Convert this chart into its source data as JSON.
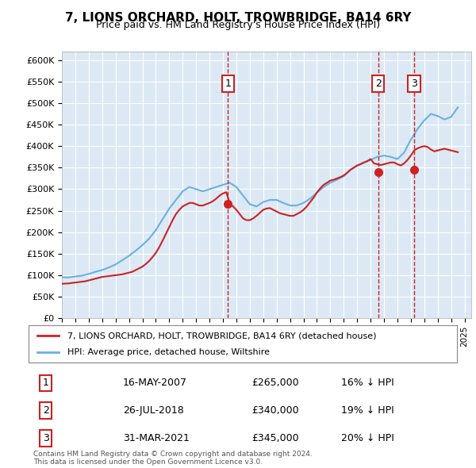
{
  "title": "7, LIONS ORCHARD, HOLT, TROWBRIDGE, BA14 6RY",
  "subtitle": "Price paid vs. HM Land Registry's House Price Index (HPI)",
  "background_color": "#dce9f5",
  "plot_bg_color": "#dce9f5",
  "ylim": [
    0,
    620000
  ],
  "yticks": [
    0,
    50000,
    100000,
    150000,
    200000,
    250000,
    300000,
    350000,
    400000,
    450000,
    500000,
    550000,
    600000
  ],
  "xlim_start": 1995.0,
  "xlim_end": 2025.5,
  "hpi_color": "#6ab0e0",
  "price_color": "#cc2222",
  "sale_marker_color": "#cc2222",
  "dashed_line_color": "#cc2222",
  "sale_points": [
    {
      "year": 2007.37,
      "price": 265000,
      "label": "1"
    },
    {
      "year": 2018.57,
      "price": 340000,
      "label": "2"
    },
    {
      "year": 2021.25,
      "price": 345000,
      "label": "3"
    }
  ],
  "legend_entries": [
    "7, LIONS ORCHARD, HOLT, TROWBRIDGE, BA14 6RY (detached house)",
    "HPI: Average price, detached house, Wiltshire"
  ],
  "table_data": [
    [
      "1",
      "16-MAY-2007",
      "£265,000",
      "16% ↓ HPI"
    ],
    [
      "2",
      "26-JUL-2018",
      "£340,000",
      "19% ↓ HPI"
    ],
    [
      "3",
      "31-MAR-2021",
      "£345,000",
      "20% ↓ HPI"
    ]
  ],
  "footer": "Contains HM Land Registry data © Crown copyright and database right 2024.\nThis data is licensed under the Open Government Licence v3.0.",
  "hpi_data_x": [
    1995.0,
    1995.5,
    1996.0,
    1996.5,
    1997.0,
    1997.5,
    1998.0,
    1998.5,
    1999.0,
    1999.5,
    2000.0,
    2000.5,
    2001.0,
    2001.5,
    2002.0,
    2002.5,
    2003.0,
    2003.5,
    2004.0,
    2004.5,
    2005.0,
    2005.5,
    2006.0,
    2006.5,
    2007.0,
    2007.5,
    2008.0,
    2008.5,
    2009.0,
    2009.5,
    2010.0,
    2010.5,
    2011.0,
    2011.5,
    2012.0,
    2012.5,
    2013.0,
    2013.5,
    2014.0,
    2014.5,
    2015.0,
    2015.5,
    2016.0,
    2016.5,
    2017.0,
    2017.5,
    2018.0,
    2018.5,
    2019.0,
    2019.5,
    2020.0,
    2020.5,
    2021.0,
    2021.5,
    2022.0,
    2022.5,
    2023.0,
    2023.5,
    2024.0,
    2024.5
  ],
  "hpi_data_y": [
    95000,
    95000,
    97000,
    99000,
    103000,
    108000,
    112000,
    118000,
    125000,
    135000,
    145000,
    157000,
    170000,
    185000,
    205000,
    230000,
    255000,
    275000,
    295000,
    305000,
    300000,
    295000,
    300000,
    305000,
    310000,
    315000,
    305000,
    285000,
    265000,
    260000,
    270000,
    275000,
    275000,
    268000,
    262000,
    262000,
    268000,
    278000,
    292000,
    305000,
    315000,
    322000,
    330000,
    345000,
    355000,
    362000,
    368000,
    375000,
    378000,
    375000,
    370000,
    385000,
    415000,
    440000,
    460000,
    475000,
    470000,
    462000,
    468000,
    490000
  ],
  "price_data_x": [
    1995.0,
    1995.25,
    1995.5,
    1995.75,
    1996.0,
    1996.25,
    1996.5,
    1996.75,
    1997.0,
    1997.25,
    1997.5,
    1997.75,
    1998.0,
    1998.25,
    1998.5,
    1998.75,
    1999.0,
    1999.25,
    1999.5,
    1999.75,
    2000.0,
    2000.25,
    2000.5,
    2000.75,
    2001.0,
    2001.25,
    2001.5,
    2001.75,
    2002.0,
    2002.25,
    2002.5,
    2002.75,
    2003.0,
    2003.25,
    2003.5,
    2003.75,
    2004.0,
    2004.25,
    2004.5,
    2004.75,
    2005.0,
    2005.25,
    2005.5,
    2005.75,
    2006.0,
    2006.25,
    2006.5,
    2006.75,
    2007.0,
    2007.25,
    2007.5,
    2007.75,
    2008.0,
    2008.25,
    2008.5,
    2008.75,
    2009.0,
    2009.25,
    2009.5,
    2009.75,
    2010.0,
    2010.25,
    2010.5,
    2010.75,
    2011.0,
    2011.25,
    2011.5,
    2011.75,
    2012.0,
    2012.25,
    2012.5,
    2012.75,
    2013.0,
    2013.25,
    2013.5,
    2013.75,
    2014.0,
    2014.25,
    2014.5,
    2014.75,
    2015.0,
    2015.25,
    2015.5,
    2015.75,
    2016.0,
    2016.25,
    2016.5,
    2016.75,
    2017.0,
    2017.25,
    2017.5,
    2017.75,
    2018.0,
    2018.25,
    2018.5,
    2018.75,
    2019.0,
    2019.25,
    2019.5,
    2019.75,
    2020.0,
    2020.25,
    2020.5,
    2020.75,
    2021.0,
    2021.25,
    2021.5,
    2021.75,
    2022.0,
    2022.25,
    2022.5,
    2022.75,
    2023.0,
    2023.25,
    2023.5,
    2023.75,
    2024.0,
    2024.25,
    2024.5
  ],
  "price_data_y": [
    80000,
    80500,
    81000,
    82000,
    83000,
    84000,
    85000,
    86000,
    88000,
    90000,
    92000,
    94000,
    96000,
    97000,
    98000,
    99000,
    100000,
    101000,
    102000,
    104000,
    106000,
    108000,
    112000,
    116000,
    120000,
    126000,
    133000,
    142000,
    152000,
    165000,
    180000,
    196000,
    212000,
    228000,
    242000,
    252000,
    260000,
    264000,
    268000,
    268000,
    265000,
    262000,
    262000,
    265000,
    268000,
    272000,
    278000,
    285000,
    290000,
    293000,
    268000,
    260000,
    252000,
    242000,
    232000,
    228000,
    228000,
    232000,
    238000,
    245000,
    252000,
    255000,
    256000,
    252000,
    248000,
    244000,
    242000,
    240000,
    238000,
    238000,
    242000,
    246000,
    252000,
    260000,
    270000,
    280000,
    292000,
    302000,
    310000,
    315000,
    320000,
    322000,
    325000,
    328000,
    332000,
    338000,
    345000,
    350000,
    355000,
    358000,
    362000,
    365000,
    370000,
    360000,
    358000,
    356000,
    358000,
    360000,
    362000,
    362000,
    358000,
    355000,
    360000,
    368000,
    378000,
    390000,
    395000,
    398000,
    400000,
    398000,
    392000,
    388000,
    390000,
    392000,
    394000,
    392000,
    390000,
    388000,
    386000
  ]
}
